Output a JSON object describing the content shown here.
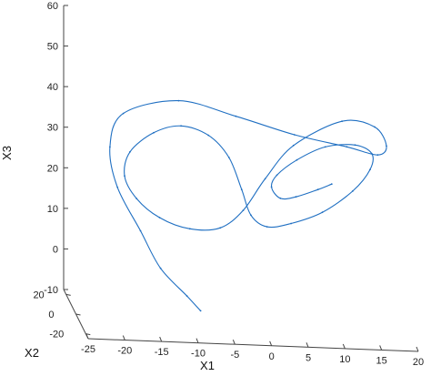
{
  "chart_data": {
    "type": "line",
    "title": "",
    "xlabel": "X1",
    "ylabel": "X2",
    "zlabel": "X3",
    "series": [
      {
        "color": "#1f6fc2",
        "x": [
          -8,
          -10,
          -14,
          -17,
          -20,
          -20.5,
          -18,
          -10,
          -2,
          6,
          13,
          17,
          18,
          16,
          11,
          4,
          0,
          -3,
          -6,
          -10,
          -14,
          -17,
          -18.5,
          -17.5,
          -14,
          -10,
          -6,
          -3,
          -1.2,
          0,
          2,
          5,
          9,
          13,
          15.5,
          16,
          14,
          10,
          6,
          3,
          2,
          3,
          5,
          8,
          10
        ],
        "y": [
          0,
          -2,
          -8,
          -12,
          -10,
          -2,
          8,
          15,
          18,
          18,
          16,
          13,
          10,
          4,
          -4,
          -10,
          -12,
          -12,
          -10,
          -8,
          -6,
          -4,
          -2,
          2,
          6,
          10,
          14,
          17,
          18,
          17,
          14,
          10,
          6,
          4,
          6,
          10,
          14,
          15,
          13,
          9,
          5,
          2,
          0,
          0,
          2
        ],
        "z": [
          -8,
          -4,
          4,
          14,
          24,
          32,
          38,
          40,
          36,
          32,
          30,
          29,
          32,
          38,
          41,
          36,
          28,
          20,
          15,
          14,
          16,
          20,
          25,
          30,
          34,
          35,
          32,
          26,
          18,
          12,
          10,
          12,
          16,
          22,
          27,
          30,
          31,
          30,
          27,
          24,
          22,
          20,
          21,
          23,
          24
        ]
      }
    ],
    "xlim": [
      -25,
      20
    ],
    "ylim": [
      -25,
      25
    ],
    "zlim": [
      -10,
      60
    ],
    "xticks": [
      "-25",
      "-20",
      "-15",
      "-10",
      "-5",
      "0",
      "5",
      "10",
      "15",
      "20"
    ],
    "yticks": [
      "-20",
      "0",
      "20"
    ],
    "zticks": [
      "-10",
      "0",
      "10",
      "20",
      "30",
      "40",
      "50",
      "60"
    ],
    "grid": false
  }
}
